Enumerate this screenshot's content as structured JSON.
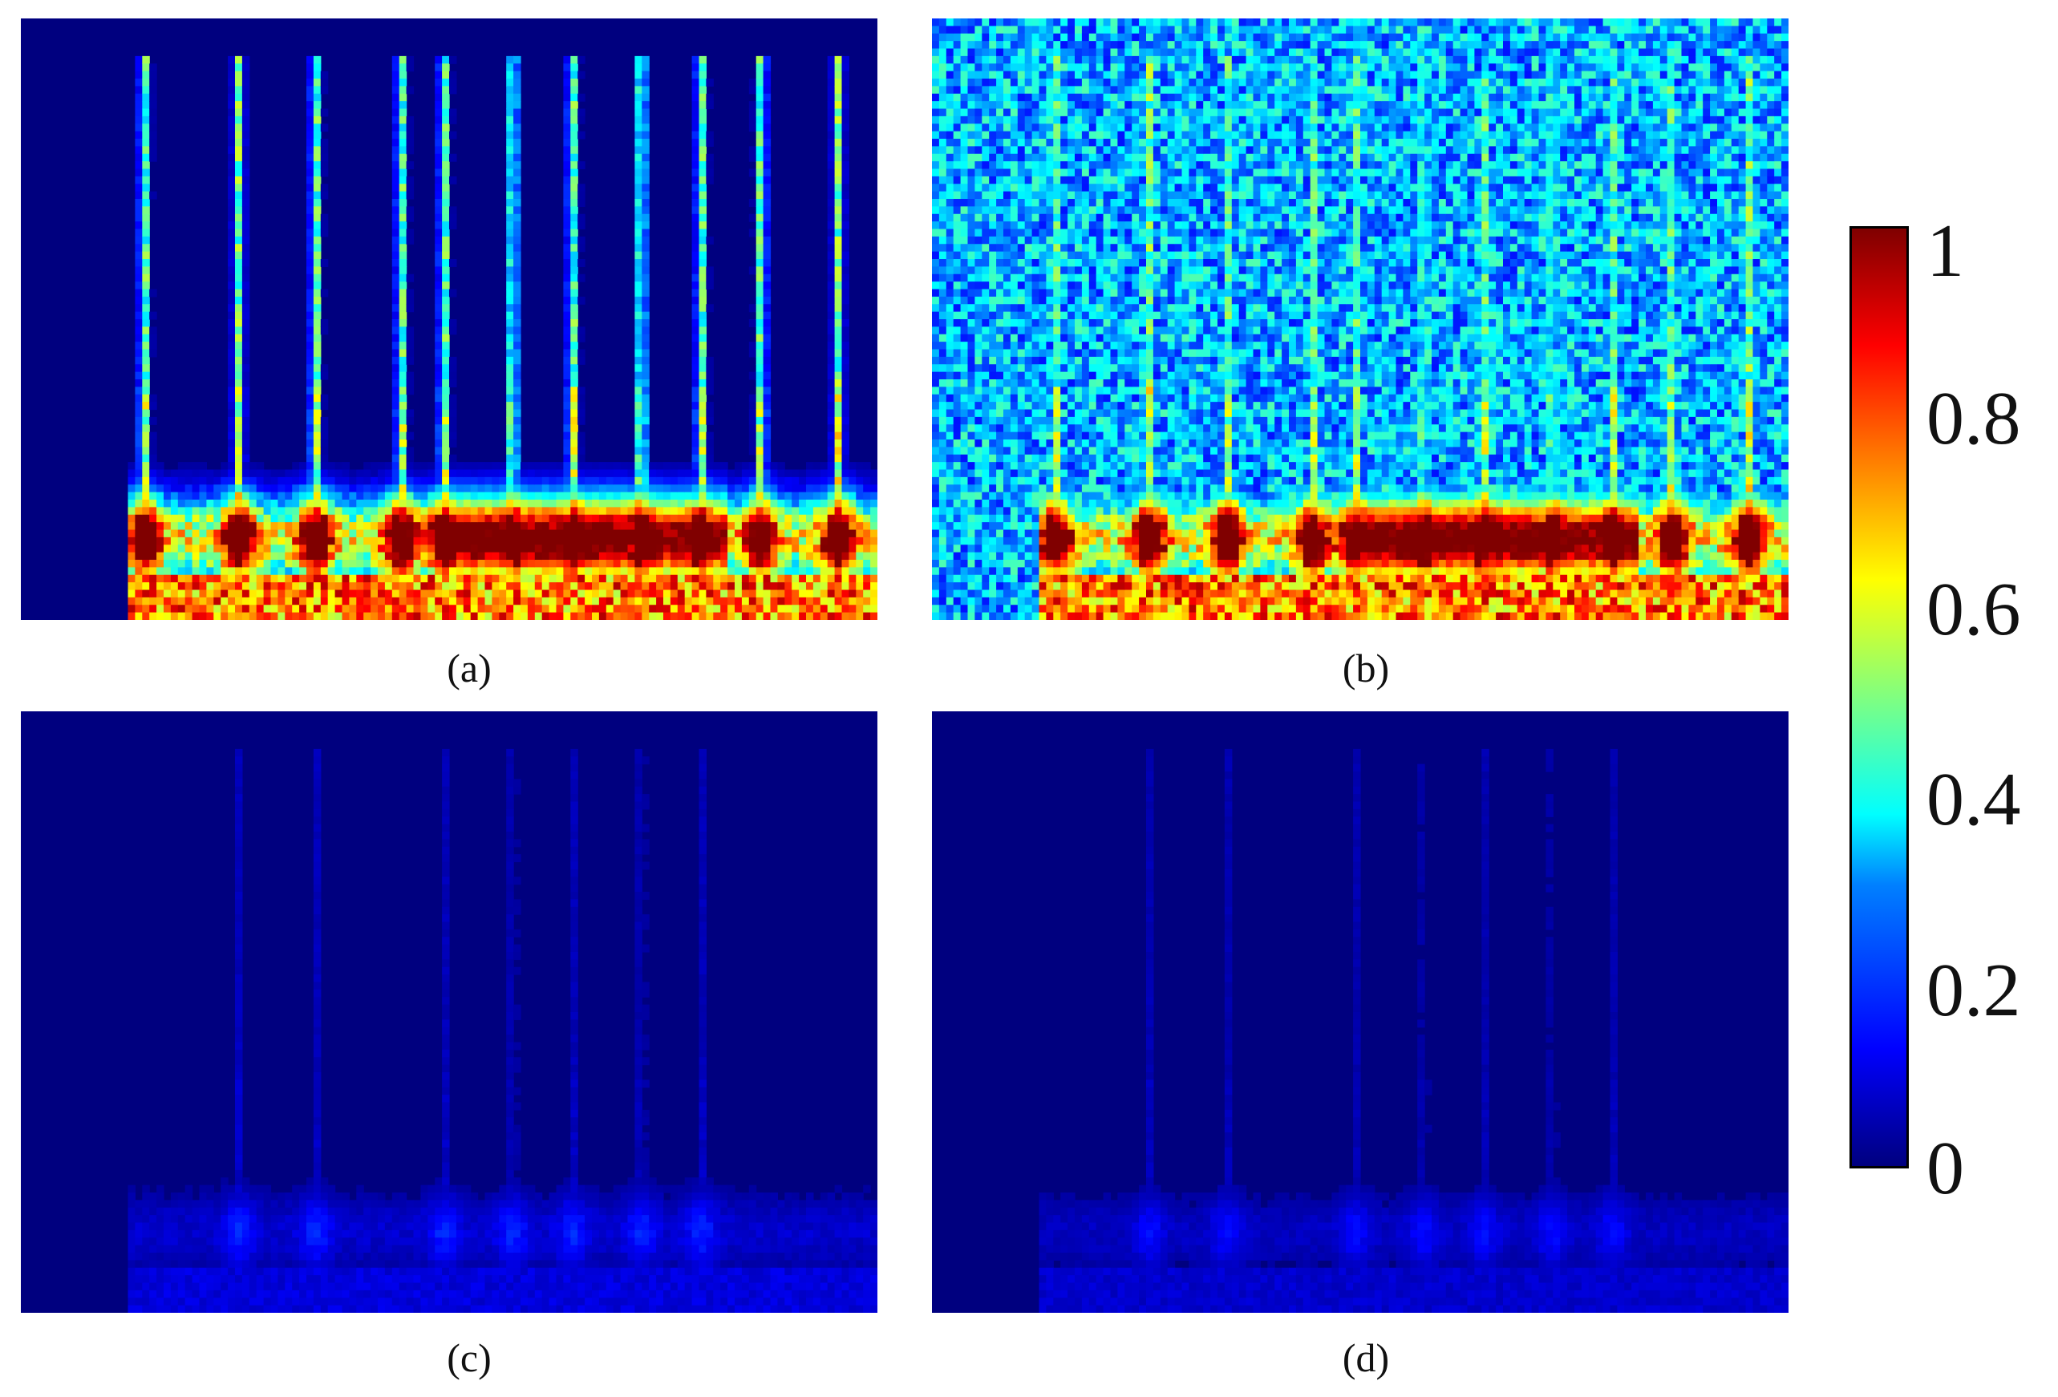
{
  "chart_data": [
    {
      "type": "heatmap",
      "panel": "(a)",
      "colormap": "jet",
      "noise": 0.0,
      "intensity": 1.0,
      "onsets": [
        0.14,
        0.25,
        0.34,
        0.44,
        0.49,
        0.57,
        0.64,
        0.72,
        0.79,
        0.86,
        0.95
      ],
      "bright_segments": [
        {
          "x_start": 0.49,
          "x_end": 0.7,
          "value": 1
        },
        {
          "x_start": 0.71,
          "x_end": 0.82,
          "value": 0.95
        }
      ],
      "x_ticks": [],
      "y_ticks": []
    },
    {
      "type": "heatmap",
      "panel": "(b)",
      "colormap": "jet",
      "noise": 0.35,
      "intensity": 1.0,
      "onsets": [
        0.14,
        0.25,
        0.34,
        0.44,
        0.49,
        0.57,
        0.64,
        0.72,
        0.79,
        0.86,
        0.95
      ],
      "bright_segments": [
        {
          "x_start": 0.49,
          "x_end": 0.7,
          "value": 1
        },
        {
          "x_start": 0.71,
          "x_end": 0.82,
          "value": 0.95
        }
      ],
      "x_ticks": [],
      "y_ticks": []
    },
    {
      "type": "heatmap",
      "panel": "(c)",
      "colormap": "jet",
      "noise": 0.0,
      "intensity": 0.12,
      "onsets": [
        0.25,
        0.34,
        0.49,
        0.57,
        0.64,
        0.72,
        0.79
      ],
      "x_ticks": [],
      "y_ticks": []
    },
    {
      "type": "heatmap",
      "panel": "(d)",
      "colormap": "jet",
      "noise": 0.0,
      "intensity": 0.1,
      "onsets": [
        0.25,
        0.34,
        0.49,
        0.57,
        0.64,
        0.72,
        0.79
      ],
      "x_ticks": [],
      "y_ticks": []
    }
  ],
  "captions": {
    "a": "(a)",
    "b": "(b)",
    "c": "(c)",
    "d": "(d)"
  },
  "colorbar": {
    "colormap": "jet",
    "range": [
      0,
      1
    ],
    "ticks": [
      "1",
      "0.8",
      "0.6",
      "0.4",
      "0.2",
      "0"
    ]
  }
}
